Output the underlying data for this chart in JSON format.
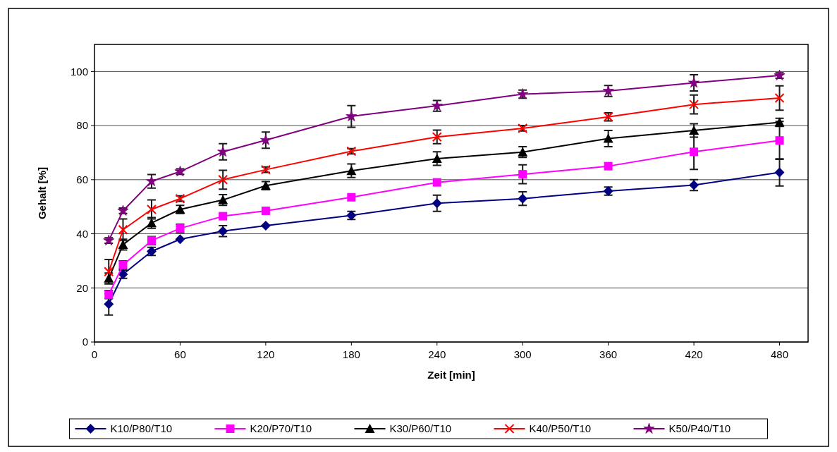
{
  "chart_data": {
    "type": "line",
    "xlabel": "Zeit [min]",
    "ylabel": "Gehalt [%]",
    "x": [
      10,
      20,
      40,
      60,
      90,
      120,
      180,
      240,
      300,
      360,
      420,
      480
    ],
    "xlim": [
      0,
      500
    ],
    "xticks": [
      0,
      60,
      120,
      180,
      240,
      300,
      360,
      420,
      480
    ],
    "ylim": [
      0,
      110
    ],
    "yticks": [
      0,
      20,
      40,
      60,
      80,
      100
    ],
    "grid": "y",
    "legend": "bottom",
    "series": [
      {
        "name": "K10/P80/T10",
        "color": "#000080",
        "marker": "diamond",
        "values": [
          14,
          25,
          33.5,
          38,
          41,
          43,
          46.8,
          51.3,
          53,
          55.8,
          58,
          62.7
        ],
        "errors": [
          4,
          1.5,
          1.5,
          null,
          2,
          null,
          1.5,
          3,
          2.5,
          1.5,
          2,
          5
        ]
      },
      {
        "name": "K20/P70/T10",
        "color": "#ff00ff",
        "marker": "square",
        "values": [
          17.5,
          28.5,
          37.5,
          42,
          46.5,
          48.5,
          53.5,
          59,
          62,
          65,
          70.3,
          74.5
        ],
        "errors": [
          1.5,
          1.5,
          1.5,
          1.5,
          null,
          null,
          null,
          null,
          3.5,
          null,
          6.5,
          7
        ]
      },
      {
        "name": "K30/P60/T10",
        "color": "#000000",
        "marker": "triangle",
        "values": [
          23.5,
          36,
          44,
          49,
          52.5,
          57.8,
          63.3,
          67.8,
          70.2,
          75.2,
          78.2,
          81.2
        ],
        "errors": [
          2,
          2,
          2,
          1.5,
          2,
          1.5,
          2.5,
          2.5,
          2,
          3,
          2.5,
          1.5
        ]
      },
      {
        "name": "K40/P50/T10",
        "color": "#ff0000",
        "marker": "cross",
        "values": [
          26,
          41.5,
          49,
          53,
          60,
          63.7,
          70.5,
          75.8,
          79,
          83.2,
          87.8,
          90.2
        ],
        "errors": [
          4.5,
          4,
          3.5,
          1,
          3.5,
          1,
          1,
          2.5,
          1,
          1.5,
          3.5,
          4.5
        ]
      },
      {
        "name": "K50/P40/T10",
        "color": "#800080",
        "marker": "star",
        "values": [
          37.5,
          48.5,
          59.4,
          63,
          70.3,
          74.6,
          83.4,
          87.3,
          91.6,
          92.8,
          95.8,
          98.5
        ],
        "errors": [
          1,
          1,
          2.5,
          1,
          3,
          3,
          4,
          2,
          1.5,
          2,
          3,
          1
        ]
      }
    ]
  }
}
